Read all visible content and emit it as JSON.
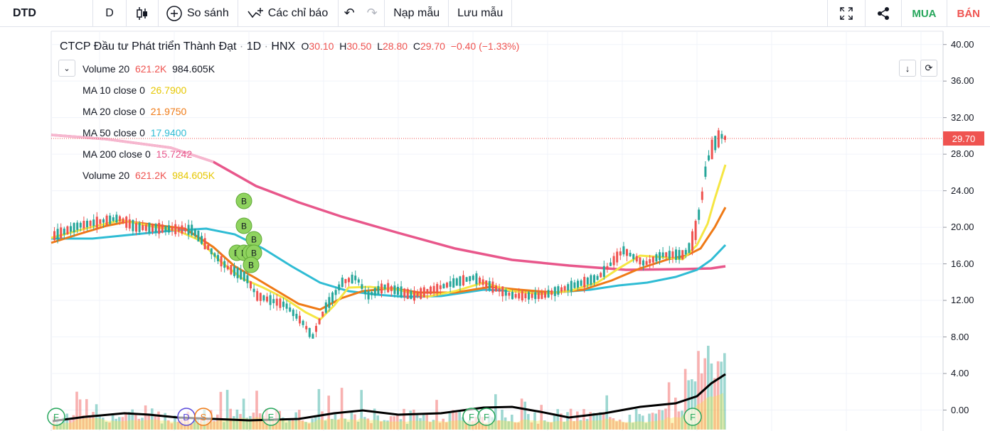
{
  "toolbar": {
    "symbol": "DTD",
    "interval": "D",
    "compare_label": "So sánh",
    "indicators_label": "Các chỉ báo",
    "load_template_label": "Nạp mẫu",
    "save_template_label": "Lưu mẫu",
    "buy_label": "MUA",
    "sell_label": "BÁN"
  },
  "legend": {
    "title": "CTCP Đầu tư Phát triển Thành Đạt",
    "interval": "1D",
    "exchange": "HNX",
    "open_k": "O",
    "open": "30.10",
    "high_k": "H",
    "high": "30.50",
    "low_k": "L",
    "low": "28.80",
    "close_k": "C",
    "close": "29.70",
    "change": "−0.40 (−1.33%)"
  },
  "indicators": [
    {
      "label": "Volume 20",
      "v1": "621.2K",
      "v2": "984.605K",
      "c1": "#ef5350",
      "c2": "#131722"
    },
    {
      "label": "MA 10 close 0",
      "v1": "26.7900",
      "c1": "#f5e642"
    },
    {
      "label": "MA 20 close 0",
      "v1": "21.9750",
      "c1": "#ef7a16"
    },
    {
      "label": "MA 50 close 0",
      "v1": "17.9400",
      "c1": "#2fbcd4"
    },
    {
      "label": "MA 200 close 0",
      "v1": "15.7242",
      "c1": "#e8578b"
    },
    {
      "label": "Volume 20",
      "v1": "621.2K",
      "v2": "984.605K",
      "c1": "#ef5350",
      "c2": "#f5e642"
    }
  ],
  "price_axis": [
    "40.00",
    "36.00",
    "32.00",
    "28.00",
    "24.00",
    "20.00",
    "16.00",
    "12.00",
    "8.00",
    "4.00",
    "0.00"
  ],
  "last_price": "29.70",
  "markers": {
    "buy": "B",
    "dividend": "D",
    "split": "S",
    "earnings": "E",
    "financial": "F"
  },
  "colors": {
    "up": "#26a69a",
    "down": "#ef5350",
    "ma10": "#f5e642",
    "ma20": "#ef7a16",
    "ma50": "#2fbcd4",
    "ma200": "#e8578b"
  }
}
